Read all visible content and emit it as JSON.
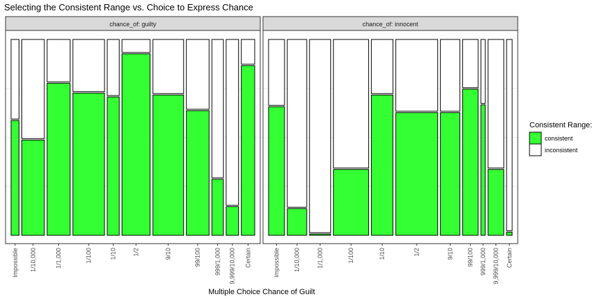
{
  "chart_data": {
    "type": "mosaic",
    "title": "Selecting the Consistent Range vs. Choice to Express Chance",
    "xlabel": "Multiple Choice Chance of Guilt",
    "ylabel": "",
    "legend": {
      "title": "Consistent Range:",
      "position": "right",
      "entries": [
        {
          "name": "consistent",
          "color": "#33ff33"
        },
        {
          "name": "inconsistent",
          "color": "#ffffff"
        }
      ]
    },
    "grid": true,
    "categories": [
      "Impossible",
      "1/10,000",
      "1/1,000",
      "1/100",
      "1/10",
      "1/2",
      "9/10",
      "99/100",
      "999/1,000",
      "9,999/10,000",
      "Certain"
    ],
    "panels": [
      {
        "strip": "chance_of: guilty",
        "widths": [
          0.034,
          0.096,
          0.098,
          0.135,
          0.051,
          0.12,
          0.131,
          0.097,
          0.049,
          0.053,
          0.057
        ],
        "consistent": [
          0.59,
          0.49,
          0.78,
          0.73,
          0.71,
          0.93,
          0.72,
          0.64,
          0.29,
          0.15,
          0.87
        ]
      },
      {
        "strip": "chance_of: innocent",
        "widths": [
          0.074,
          0.09,
          0.098,
          0.163,
          0.1,
          0.194,
          0.09,
          0.072,
          0.02,
          0.073,
          0.026
        ],
        "consistent": [
          0.66,
          0.14,
          0.01,
          0.34,
          0.72,
          0.63,
          0.63,
          0.75,
          0.67,
          0.34,
          0.02
        ]
      }
    ],
    "colors": {
      "consistent": "#33ff33",
      "inconsistent": "#ffffff",
      "strip_fill": "#d9d9d9",
      "grid": "#ebebeb"
    }
  }
}
